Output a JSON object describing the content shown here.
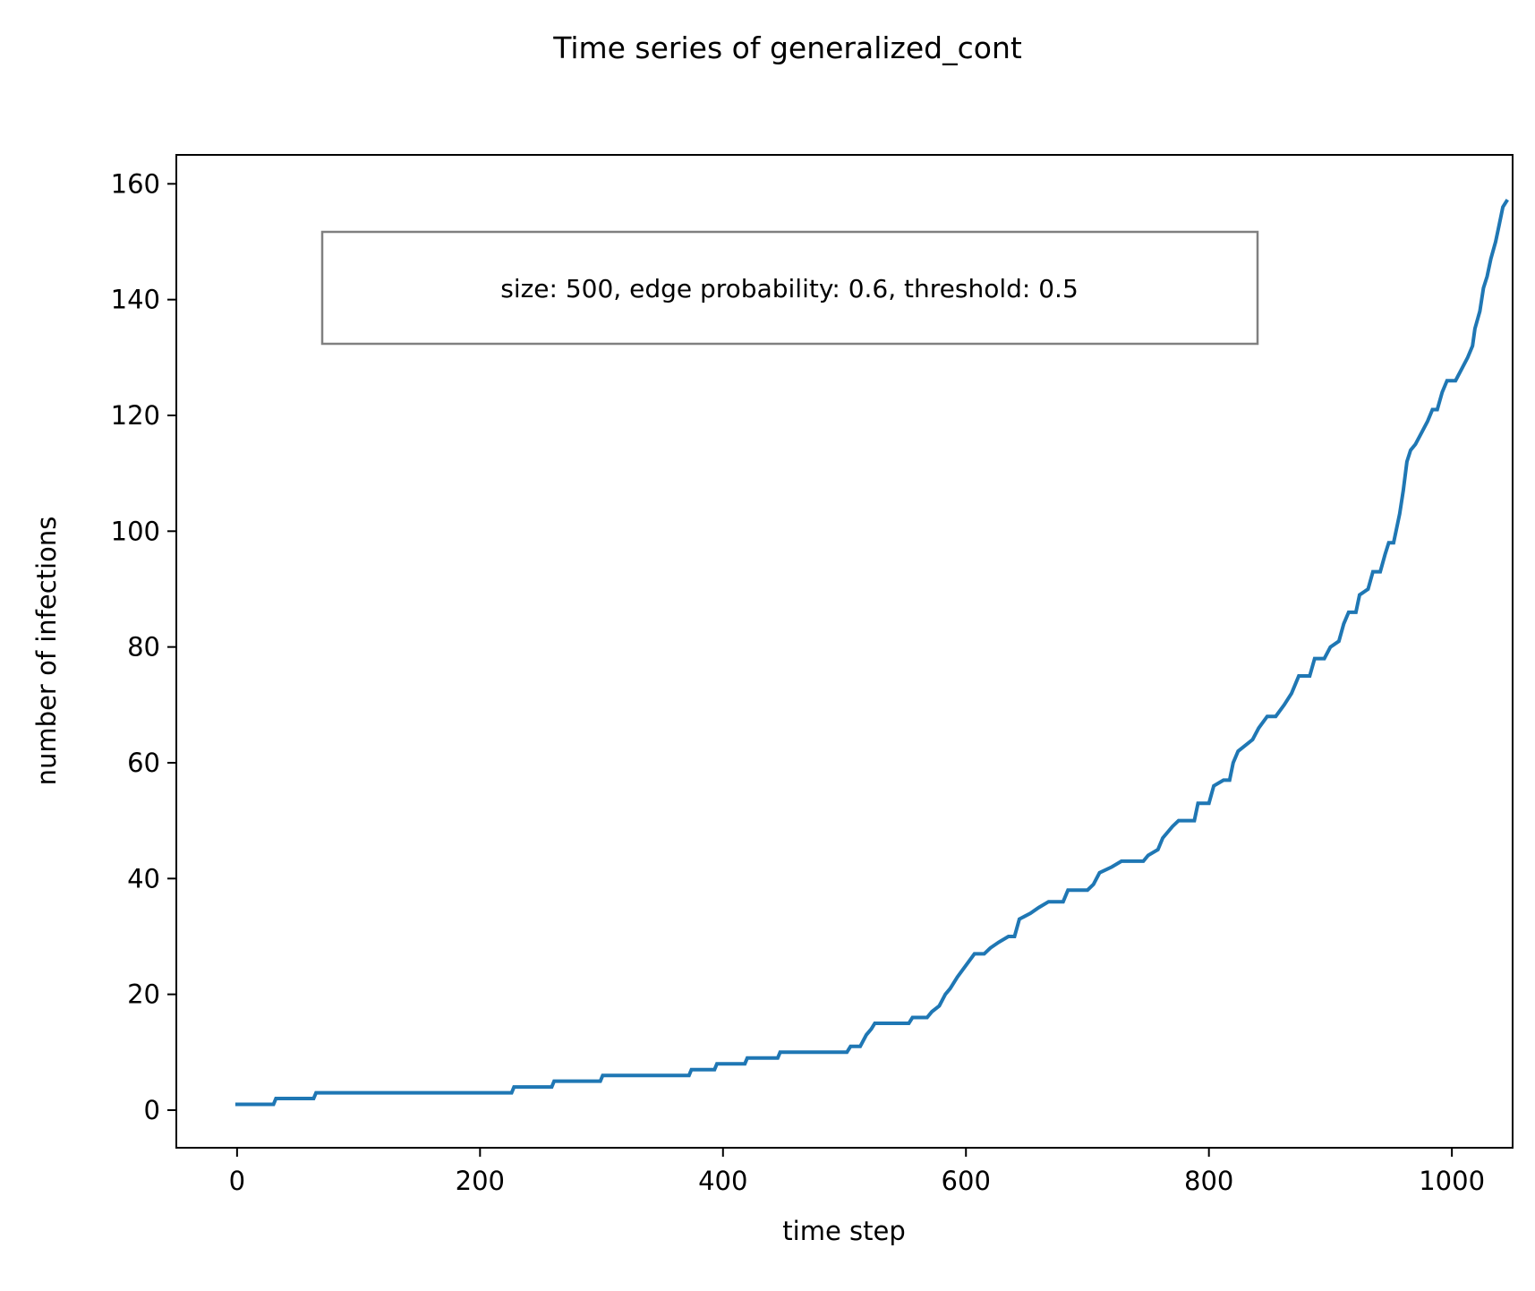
{
  "chart_data": {
    "type": "line",
    "title": "Time series of generalized_cont",
    "xlabel": "time step",
    "ylabel": "number of infections",
    "annotation": "size: 500, edge probability: 0.6, threshold: 0.5",
    "xlim": [
      -50,
      1050
    ],
    "ylim": [
      -6.5,
      165
    ],
    "x_ticks": [
      0,
      200,
      400,
      600,
      800,
      1000
    ],
    "y_ticks": [
      0,
      20,
      40,
      60,
      80,
      100,
      120,
      140,
      160
    ],
    "grid": false,
    "series": [
      {
        "color": "#1f77b4",
        "points": [
          [
            0,
            1
          ],
          [
            30,
            1
          ],
          [
            32,
            2
          ],
          [
            63,
            2
          ],
          [
            65,
            3
          ],
          [
            226,
            3
          ],
          [
            228,
            4
          ],
          [
            259,
            4
          ],
          [
            261,
            5
          ],
          [
            299,
            5
          ],
          [
            301,
            6
          ],
          [
            372,
            6
          ],
          [
            374,
            7
          ],
          [
            393,
            7
          ],
          [
            395,
            8
          ],
          [
            418,
            8
          ],
          [
            420,
            9
          ],
          [
            445,
            9
          ],
          [
            447,
            10
          ],
          [
            502,
            10
          ],
          [
            505,
            11
          ],
          [
            513,
            11
          ],
          [
            518,
            13
          ],
          [
            522,
            14
          ],
          [
            525,
            15
          ],
          [
            553,
            15
          ],
          [
            556,
            16
          ],
          [
            568,
            16
          ],
          [
            572,
            17
          ],
          [
            578,
            18
          ],
          [
            583,
            20
          ],
          [
            587,
            21
          ],
          [
            593,
            23
          ],
          [
            600,
            25
          ],
          [
            607,
            27
          ],
          [
            615,
            27
          ],
          [
            620,
            28
          ],
          [
            627,
            29
          ],
          [
            635,
            30
          ],
          [
            640,
            30
          ],
          [
            644,
            33
          ],
          [
            653,
            34
          ],
          [
            660,
            35
          ],
          [
            668,
            36
          ],
          [
            680,
            36
          ],
          [
            684,
            38
          ],
          [
            700,
            38
          ],
          [
            705,
            39
          ],
          [
            710,
            41
          ],
          [
            720,
            42
          ],
          [
            728,
            43
          ],
          [
            746,
            43
          ],
          [
            750,
            44
          ],
          [
            758,
            45
          ],
          [
            762,
            47
          ],
          [
            770,
            49
          ],
          [
            775,
            50
          ],
          [
            788,
            50
          ],
          [
            791,
            53
          ],
          [
            800,
            53
          ],
          [
            804,
            56
          ],
          [
            812,
            57
          ],
          [
            817,
            57
          ],
          [
            820,
            60
          ],
          [
            824,
            62
          ],
          [
            830,
            63
          ],
          [
            836,
            64
          ],
          [
            841,
            66
          ],
          [
            848,
            68
          ],
          [
            855,
            68
          ],
          [
            862,
            70
          ],
          [
            868,
            72
          ],
          [
            874,
            75
          ],
          [
            883,
            75
          ],
          [
            887,
            78
          ],
          [
            895,
            78
          ],
          [
            900,
            80
          ],
          [
            907,
            81
          ],
          [
            911,
            84
          ],
          [
            915,
            86
          ],
          [
            921,
            86
          ],
          [
            924,
            89
          ],
          [
            931,
            90
          ],
          [
            935,
            93
          ],
          [
            941,
            93
          ],
          [
            945,
            96
          ],
          [
            948,
            98
          ],
          [
            952,
            98
          ],
          [
            957,
            103
          ],
          [
            960,
            107
          ],
          [
            963,
            112
          ],
          [
            966,
            114
          ],
          [
            970,
            115
          ],
          [
            975,
            117
          ],
          [
            980,
            119
          ],
          [
            984,
            121
          ],
          [
            988,
            121
          ],
          [
            992,
            124
          ],
          [
            996,
            126
          ],
          [
            1003,
            126
          ],
          [
            1008,
            128
          ],
          [
            1013,
            130
          ],
          [
            1017,
            132
          ],
          [
            1019,
            135
          ],
          [
            1023,
            138
          ],
          [
            1026,
            142
          ],
          [
            1029,
            144
          ],
          [
            1032,
            147
          ],
          [
            1036,
            150
          ],
          [
            1039,
            153
          ],
          [
            1042,
            156
          ],
          [
            1045,
            157
          ]
        ]
      }
    ]
  }
}
